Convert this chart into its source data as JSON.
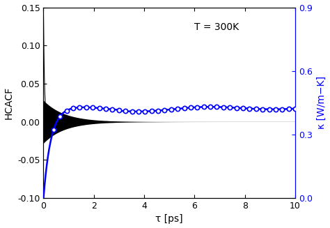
{
  "title": "",
  "xlabel": "τ [ps]",
  "ylabel_left": "HCACF",
  "ylabel_right": "κ [W/m−K]",
  "annotation": "T = 300K",
  "xlim": [
    0,
    10
  ],
  "ylim_left": [
    -0.1,
    0.15
  ],
  "ylim_right": [
    0.0,
    0.9
  ],
  "yticks_left": [
    -0.1,
    -0.05,
    0.0,
    0.05,
    0.1,
    0.15
  ],
  "yticks_right": [
    0.0,
    0.3,
    0.6,
    0.9
  ],
  "xticks": [
    0,
    2,
    4,
    6,
    8,
    10
  ],
  "hcacf_color": "black",
  "kappa_color": "blue",
  "kappa_marker": "o",
  "background_color": "white",
  "hcacf_amplitude": 0.028,
  "hcacf_decay": 1.2,
  "kappa_plateau": 0.42,
  "kappa_rise_rate": 3.5,
  "n_kappa_markers": 38
}
